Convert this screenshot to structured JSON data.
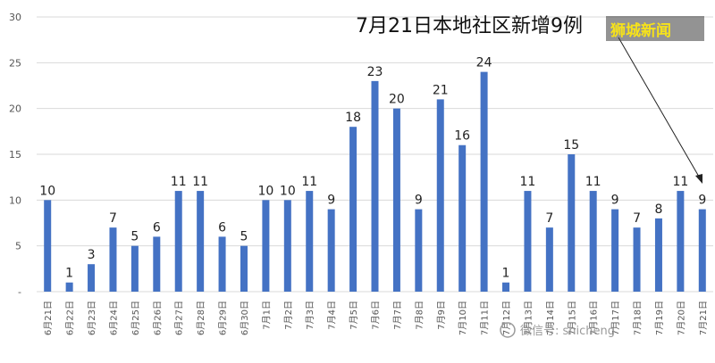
{
  "chart_data": {
    "type": "bar",
    "title": "7月21日本地社区新增9例",
    "xlabel": "",
    "ylabel": "",
    "ylim": [
      0,
      30
    ],
    "yticks": [
      "-",
      "5",
      "10",
      "15",
      "20",
      "25",
      "30"
    ],
    "grid": true,
    "categories": [
      "6月21日",
      "6月22日",
      "6月23日",
      "6月24日",
      "6月25日",
      "6月26日",
      "6月27日",
      "6月28日",
      "6月29日",
      "6月30日",
      "7月1日",
      "7月2日",
      "7月3日",
      "7月4日",
      "7月5日",
      "7月6日",
      "7月7日",
      "7月8日",
      "7月9日",
      "7月10日",
      "7月11日",
      "7月12日",
      "7月13日",
      "7月14日",
      "7月15日",
      "7月16日",
      "7月17日",
      "7月18日",
      "7月19日",
      "7月20日",
      "7月21日"
    ],
    "values": [
      10,
      1,
      3,
      7,
      5,
      6,
      11,
      11,
      6,
      5,
      10,
      10,
      11,
      9,
      18,
      23,
      20,
      9,
      21,
      16,
      24,
      1,
      11,
      7,
      15,
      11,
      9,
      7,
      8,
      11,
      9
    ],
    "bar_color": "#4472c4"
  },
  "branding": {
    "stamp": "狮城新闻",
    "stamp_color": "#f6e21a",
    "watermark": "微信号: shicheng"
  }
}
